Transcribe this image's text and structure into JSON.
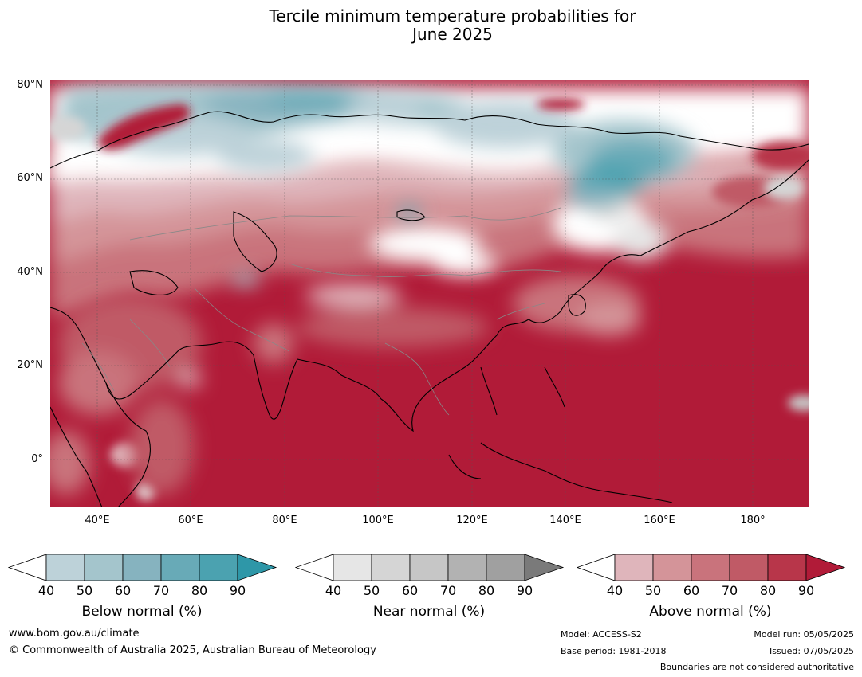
{
  "title": {
    "line1": "Tercile minimum temperature probabilities for",
    "line2": "June 2025"
  },
  "map": {
    "lat_labels": [
      "80°N",
      "60°N",
      "40°N",
      "20°N",
      "0°"
    ],
    "lon_labels": [
      "40°E",
      "60°E",
      "80°E",
      "100°E",
      "120°E",
      "140°E",
      "160°E",
      "180°"
    ],
    "colors": {
      "below": [
        "#bdd2d9",
        "#a4c5cc",
        "#86b3bf",
        "#68aab7",
        "#4ba2b0",
        "#2e97a8"
      ],
      "near": [
        "#e6e6e6",
        "#d5d5d5",
        "#c6c6c6",
        "#b2b2b2",
        "#a0a0a0",
        "#7a7a7a"
      ],
      "above": [
        "#dfb5bb",
        "#d49499",
        "#c9737c",
        "#c05a66",
        "#b8364a",
        "#b11b38"
      ]
    }
  },
  "colorbars": [
    {
      "key": "below",
      "title": "Below normal (%)",
      "ticks": [
        "40",
        "50",
        "60",
        "70",
        "80",
        "90"
      ]
    },
    {
      "key": "near",
      "title": "Near normal (%)",
      "ticks": [
        "40",
        "50",
        "60",
        "70",
        "80",
        "90"
      ]
    },
    {
      "key": "above",
      "title": "Above normal (%)",
      "ticks": [
        "40",
        "50",
        "60",
        "70",
        "80",
        "90"
      ]
    }
  ],
  "footer": {
    "url": "www.bom.gov.au/climate",
    "copyright": "© Commonwealth of Australia 2025, Australian Bureau of Meteorology",
    "model": "Model: ACCESS-S2",
    "base_period": "Base period: 1981-2018",
    "model_run": "Model run: 05/05/2025",
    "issued": "Issued: 07/05/2025",
    "disclaimer": "Boundaries are not considered authoritative"
  }
}
